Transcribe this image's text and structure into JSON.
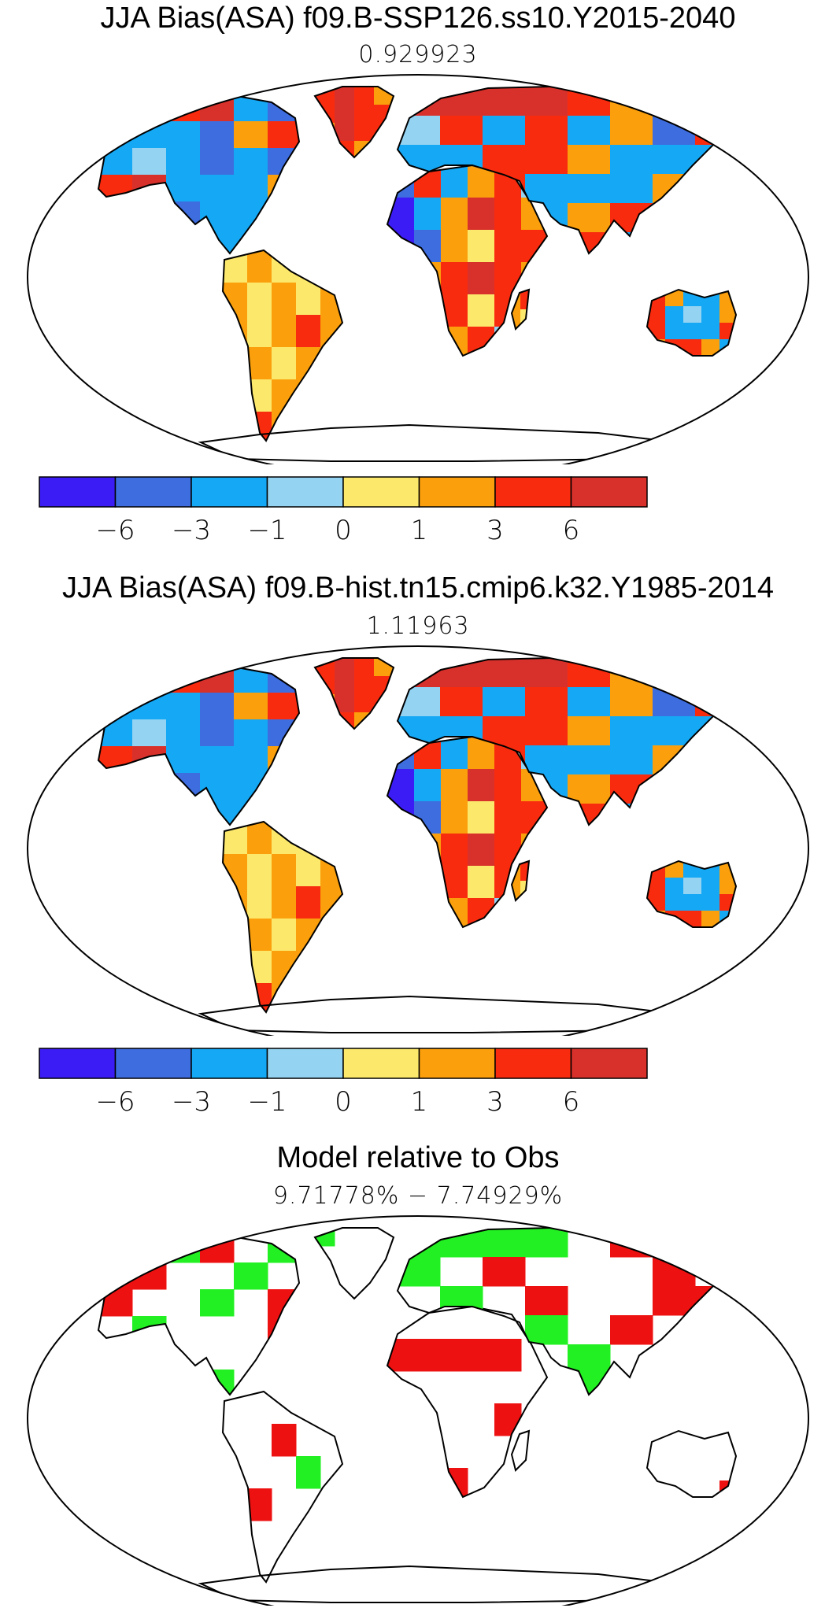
{
  "panels": [
    {
      "title": "JJA Bias(ASA) f09.B-SSP126.ss10.Y2015-2040",
      "subtitle": "0.929923"
    },
    {
      "title": "JJA Bias(ASA) f09.B-hist.tn15.cmip6.k32.Y1985-2014",
      "subtitle": "1.11963"
    },
    {
      "title": "Model relative to Obs",
      "subtitle": "9.71778% − 7.74929%"
    }
  ],
  "colorbar": {
    "colors": [
      "#3b1cf5",
      "#3e6de0",
      "#15a8f5",
      "#94d3f2",
      "#fce96c",
      "#fba00c",
      "#f92b0f",
      "#d8312b"
    ],
    "tick_labels": [
      "−6",
      "−3",
      "−1",
      "0",
      "1",
      "3",
      "6"
    ]
  },
  "difference_colors": {
    "model_better": "#22f022",
    "model_worse": "#ee1111"
  }
}
